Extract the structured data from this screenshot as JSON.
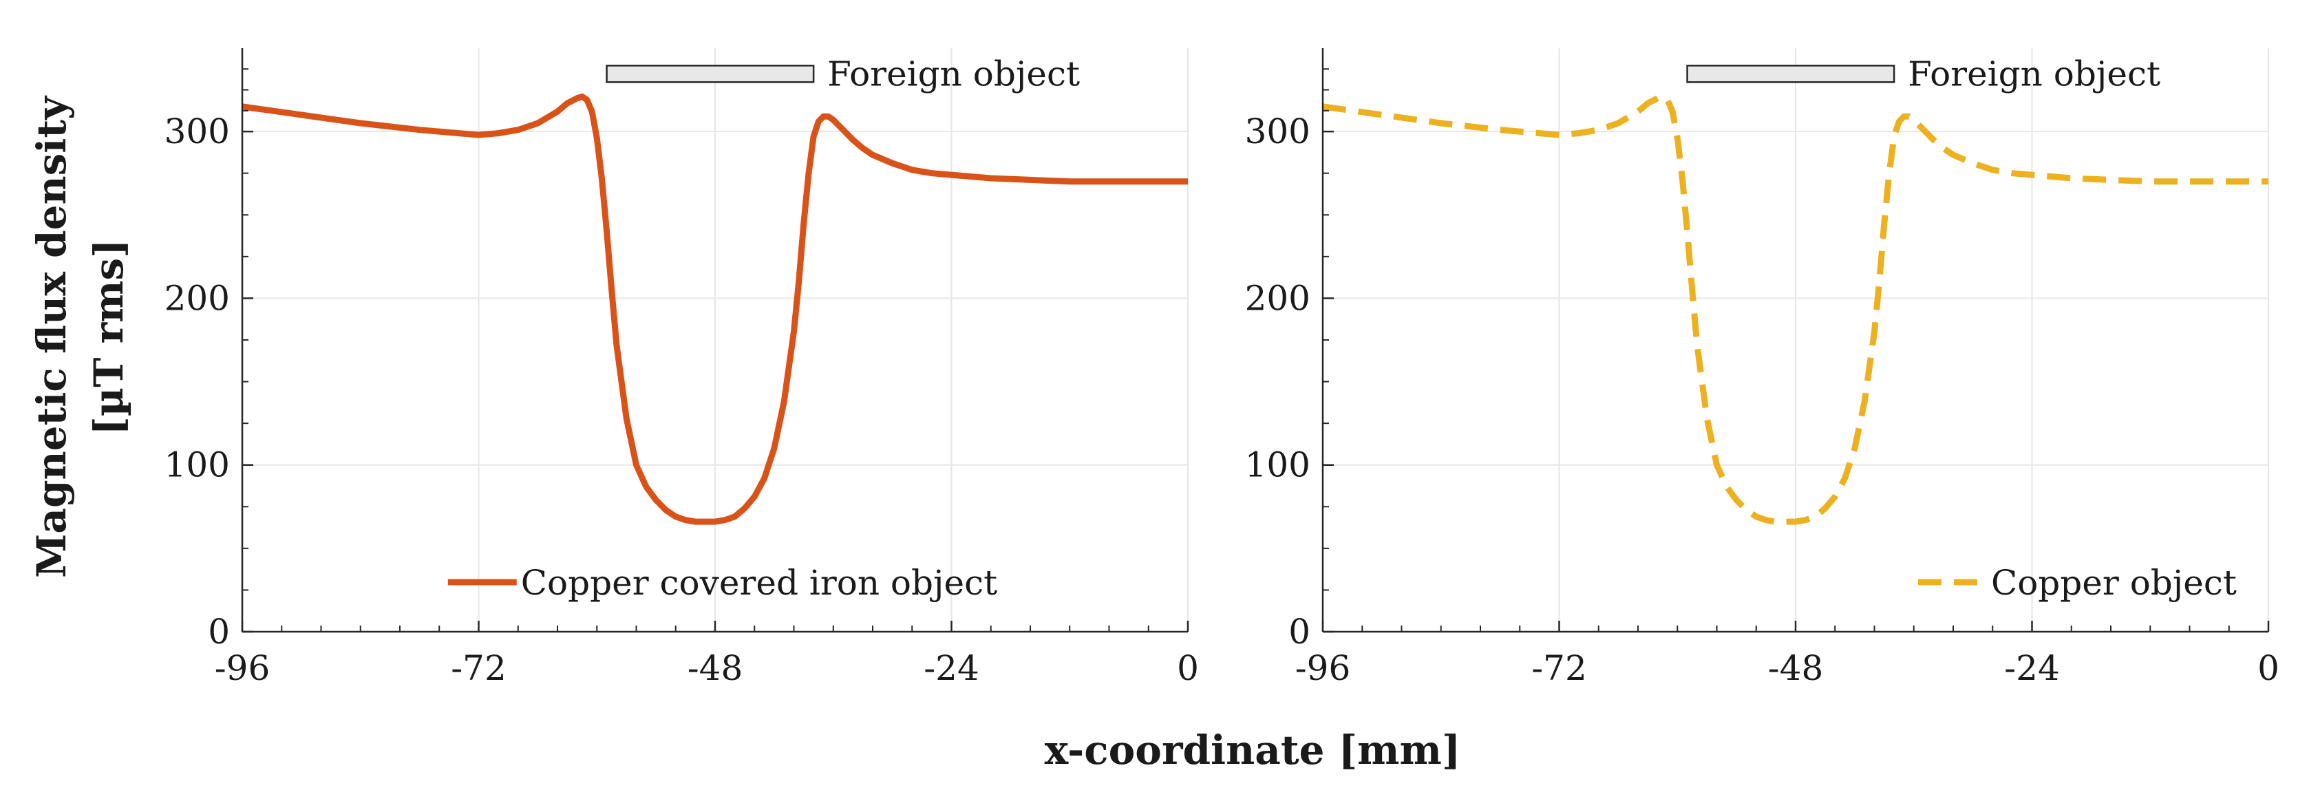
{
  "figure": {
    "ylabel_line1": "Magnetic flux density",
    "ylabel_line2": "[µT rms]",
    "xlabel": "x-coordinate [mm]"
  },
  "colors": {
    "copper_covered_iron": "#d95319",
    "copper": "#edb120",
    "grid": "#e6e6e6",
    "axis": "#262626",
    "foreign_object_fill": "#e8e8e8"
  },
  "chart_data": [
    {
      "type": "line",
      "xlim": [
        -96,
        0
      ],
      "ylim": [
        0,
        350
      ],
      "x_ticks": [
        -96,
        -72,
        -48,
        -24,
        0
      ],
      "y_ticks": [
        0,
        100,
        200,
        300
      ],
      "grid": true,
      "legend_placement": "bottom-center",
      "annotation": {
        "label": "Foreign object",
        "x_start": -59,
        "x_end": -38,
        "y": 335
      },
      "series": [
        {
          "name": "Copper covered iron object",
          "style": "solid",
          "color": "#d95319",
          "x": [
            -96,
            -90,
            -84,
            -78,
            -74,
            -72,
            -70,
            -68,
            -66,
            -64,
            -63,
            -62,
            -61.5,
            -61,
            -60.5,
            -60,
            -59.5,
            -59,
            -58.5,
            -58,
            -57,
            -56,
            -55,
            -54,
            -53,
            -52,
            -51,
            -50,
            -49,
            -48,
            -47,
            -46,
            -45,
            -44,
            -43,
            -42,
            -41,
            -40,
            -39.5,
            -39,
            -38.5,
            -38,
            -37.5,
            -37,
            -36.5,
            -36,
            -35.5,
            -35,
            -34,
            -33,
            -32,
            -30,
            -28,
            -26,
            -24,
            -20,
            -16,
            -12,
            -8,
            -4,
            0
          ],
          "y": [
            315,
            310,
            305,
            301,
            299,
            298,
            299,
            301,
            305,
            312,
            317,
            320,
            321,
            319,
            312,
            296,
            272,
            240,
            205,
            172,
            128,
            100,
            87,
            79,
            73,
            69,
            67,
            66,
            66,
            66,
            67,
            69,
            74,
            81,
            92,
            110,
            138,
            180,
            210,
            245,
            275,
            297,
            306,
            309,
            309,
            307,
            304,
            301,
            295,
            290,
            286,
            281,
            277,
            275,
            274,
            272,
            271,
            270,
            270,
            270,
            270
          ]
        }
      ]
    },
    {
      "type": "line",
      "xlim": [
        -96,
        0
      ],
      "ylim": [
        0,
        350
      ],
      "x_ticks": [
        -96,
        -72,
        -48,
        -24,
        0
      ],
      "y_ticks": [
        0,
        100,
        200,
        300
      ],
      "grid": true,
      "legend_placement": "bottom-right",
      "annotation": {
        "label": "Foreign object",
        "x_start": -59,
        "x_end": -38,
        "y": 335
      },
      "series": [
        {
          "name": "Copper object",
          "style": "dashed",
          "color": "#edb120",
          "x": [
            -96,
            -90,
            -84,
            -78,
            -74,
            -72,
            -70,
            -68,
            -66,
            -64,
            -63,
            -62,
            -61.5,
            -61,
            -60.5,
            -60,
            -59.5,
            -59,
            -58.5,
            -58,
            -57,
            -56,
            -55,
            -54,
            -53,
            -52,
            -51,
            -50,
            -49,
            -48,
            -47,
            -46,
            -45,
            -44,
            -43,
            -42,
            -41,
            -40,
            -39.5,
            -39,
            -38.5,
            -38,
            -37.5,
            -37,
            -36.5,
            -36,
            -35.5,
            -35,
            -34,
            -33,
            -32,
            -30,
            -28,
            -26,
            -24,
            -20,
            -16,
            -12,
            -8,
            -4,
            0
          ],
          "y": [
            315,
            310,
            305,
            301,
            299,
            298,
            299,
            301,
            305,
            312,
            317,
            320,
            321,
            319,
            312,
            296,
            272,
            240,
            205,
            172,
            128,
            100,
            87,
            79,
            73,
            69,
            67,
            66,
            66,
            66,
            67,
            69,
            74,
            81,
            92,
            110,
            138,
            180,
            210,
            245,
            275,
            297,
            306,
            309,
            309,
            307,
            304,
            301,
            295,
            290,
            286,
            281,
            277,
            275,
            274,
            272,
            271,
            270,
            270,
            270,
            270
          ]
        }
      ]
    }
  ]
}
